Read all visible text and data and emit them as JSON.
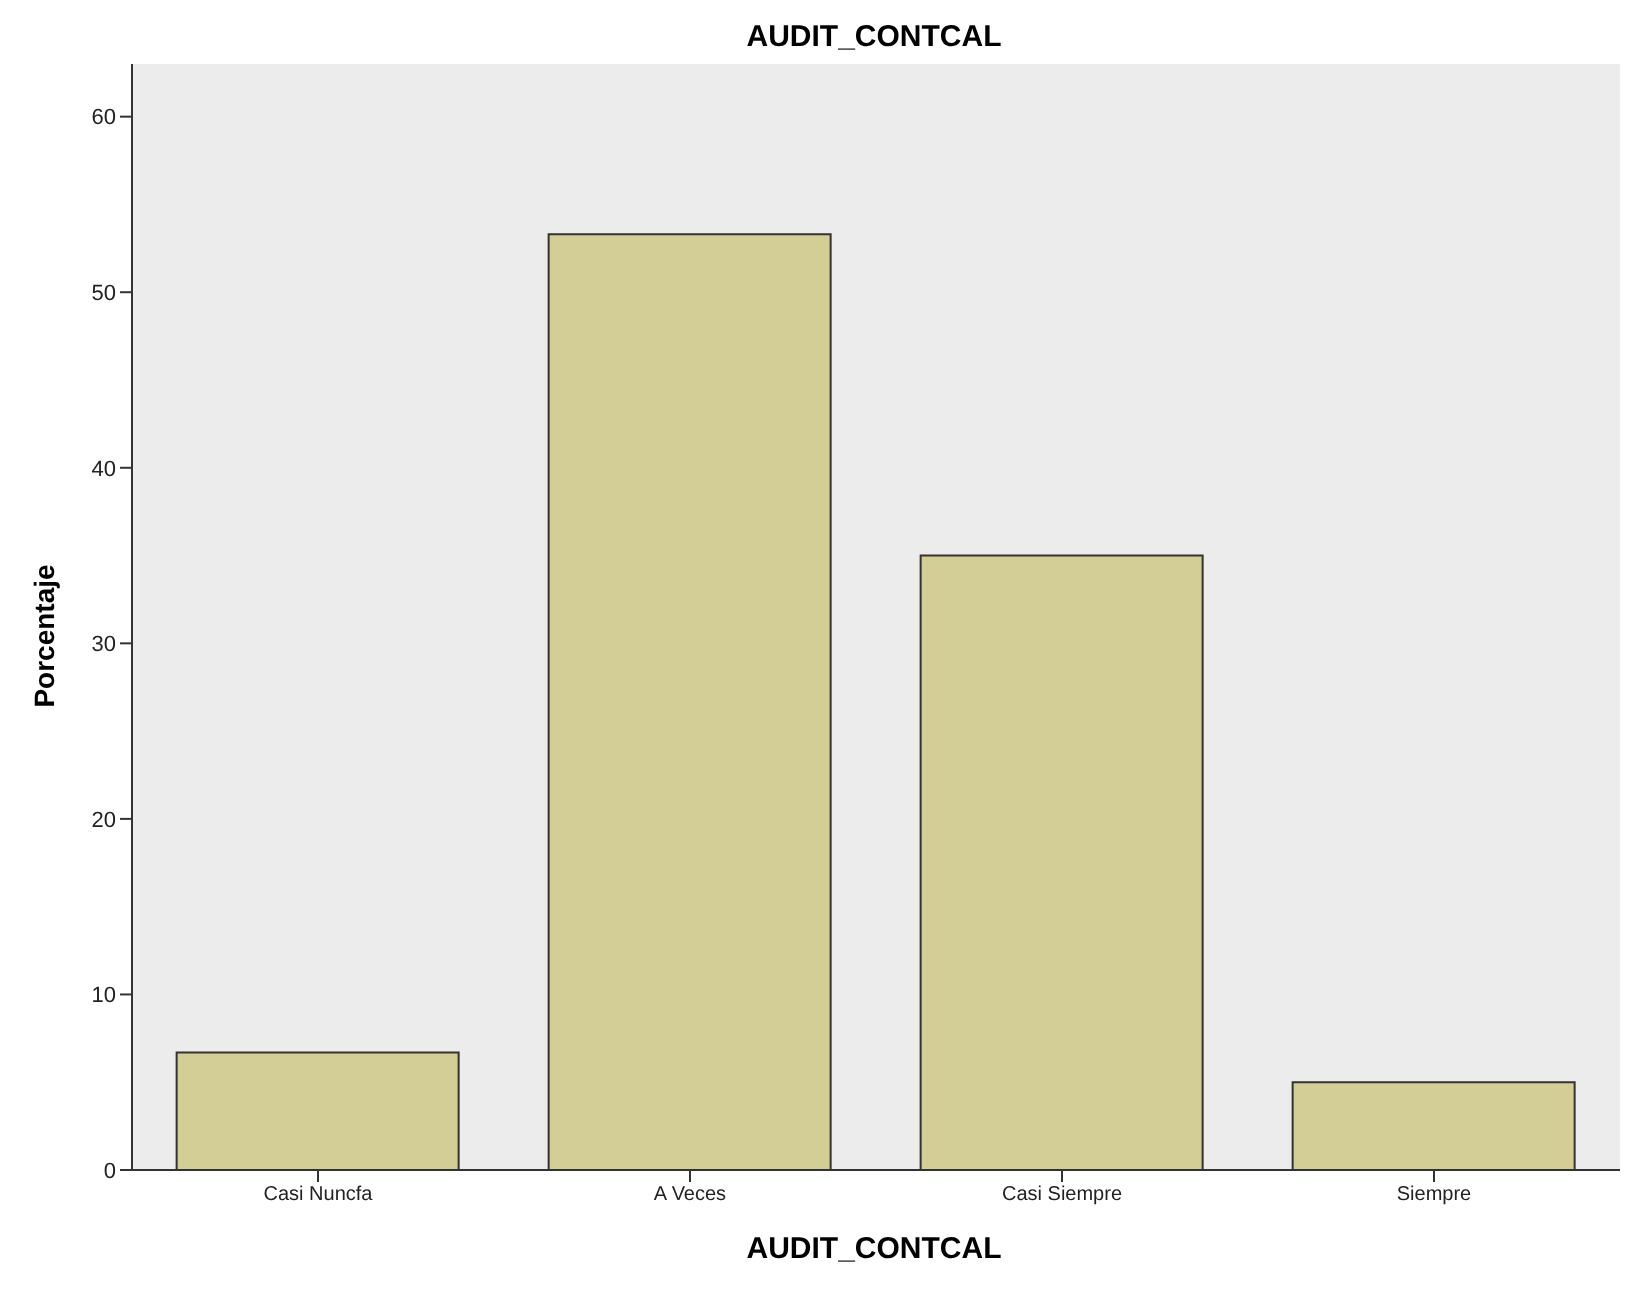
{
  "chart_data": {
    "type": "bar",
    "title": "AUDIT_CONTCAL",
    "xlabel": "AUDIT_CONTCAL",
    "ylabel": "Porcentaje",
    "categories": [
      "Casi Nuncfa",
      "A Veces",
      "Casi Siempre",
      "Siempre"
    ],
    "values": [
      6.7,
      53.3,
      35,
      5
    ],
    "color": "#d3cd96",
    "ylim": [
      0,
      63
    ],
    "yticks": [
      0,
      10,
      20,
      30,
      40,
      50,
      60
    ],
    "grid": false
  }
}
